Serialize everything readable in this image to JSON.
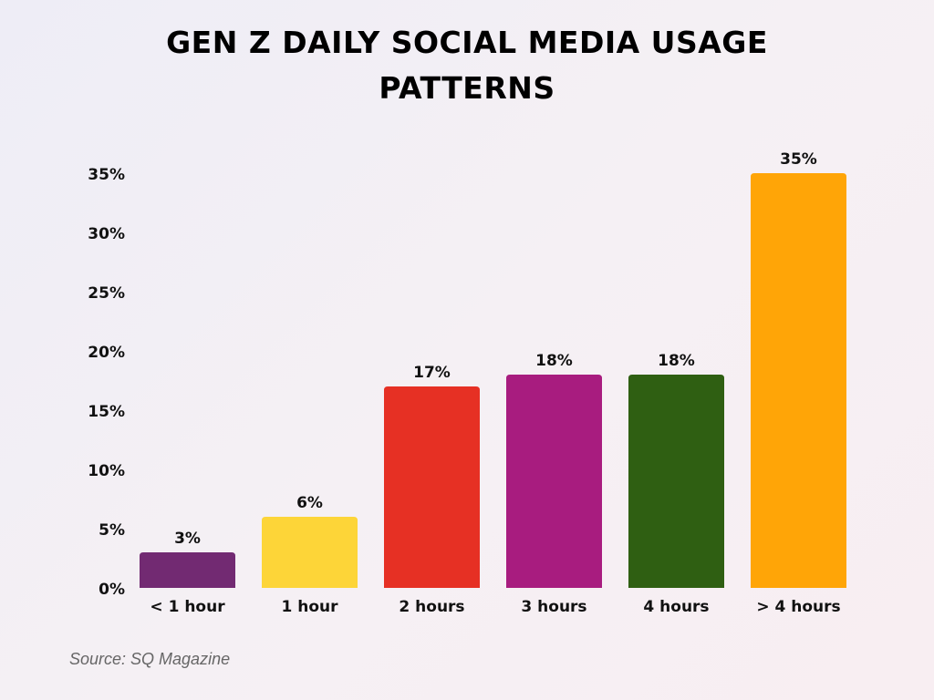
{
  "chart_data": {
    "type": "bar",
    "title": "GEN Z DAILY SOCIAL MEDIA USAGE PATTERNS",
    "title_lines": [
      "GEN Z DAILY SOCIAL MEDIA USAGE",
      "PATTERNS"
    ],
    "categories": [
      "< 1 hour",
      "1 hour",
      "2 hours",
      "3 hours",
      "4 hours",
      "> 4 hours"
    ],
    "values": [
      3,
      6,
      17,
      18,
      18,
      35
    ],
    "data_labels": [
      "3%",
      "6%",
      "17%",
      "18%",
      "18%",
      "35%"
    ],
    "colors": [
      "#722a72",
      "#fdd538",
      "#e63024",
      "#a81c7f",
      "#2f5f12",
      "#ffa507"
    ],
    "xlabel": "",
    "ylabel": "",
    "ylim": [
      0,
      35
    ],
    "yticks": [
      0,
      5,
      10,
      15,
      20,
      25,
      30,
      35
    ],
    "ytick_labels": [
      "0%",
      "5%",
      "10%",
      "15%",
      "20%",
      "25%",
      "30%",
      "35%"
    ],
    "grid": false,
    "legend": "none"
  },
  "source": "Source: SQ Magazine"
}
